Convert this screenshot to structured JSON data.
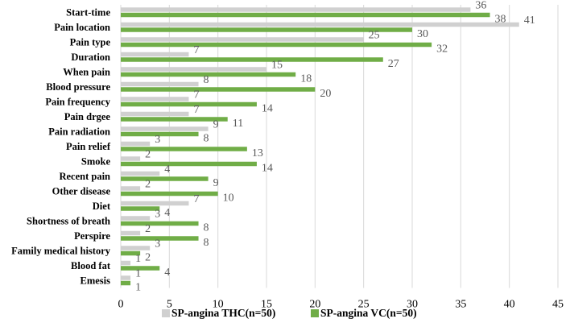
{
  "chart_data": {
    "type": "bar",
    "orientation": "horizontal",
    "categories": [
      "Start-time",
      "Pain location",
      "Pain type",
      "Duration",
      "When pain",
      "Blood pressure",
      "Pain frequency",
      "Pain drgee",
      "Pain radiation",
      "Pain relief",
      "Smoke",
      "Recent pain",
      "Other disease",
      "Diet",
      "Shortness of breath",
      "Perspire",
      "Family medical history",
      "Blood fat",
      "Emesis"
    ],
    "series": [
      {
        "name": "SP-angina THC(n=50)",
        "color": "#d0d0d0",
        "values": [
          36,
          41,
          25,
          7,
          15,
          8,
          7,
          7,
          9,
          3,
          2,
          4,
          2,
          7,
          3,
          2,
          3,
          1,
          1
        ]
      },
      {
        "name": "SP-angina VC(n=50)",
        "color": "#70ad47",
        "values": [
          38,
          30,
          32,
          27,
          18,
          20,
          14,
          11,
          8,
          13,
          14,
          9,
          10,
          4,
          8,
          8,
          2,
          4,
          1
        ]
      }
    ],
    "xlim": [
      0,
      45
    ],
    "xticks": [
      0,
      5,
      10,
      15,
      20,
      25,
      30,
      35,
      40,
      45
    ],
    "grid": true,
    "legend": "bottom"
  }
}
